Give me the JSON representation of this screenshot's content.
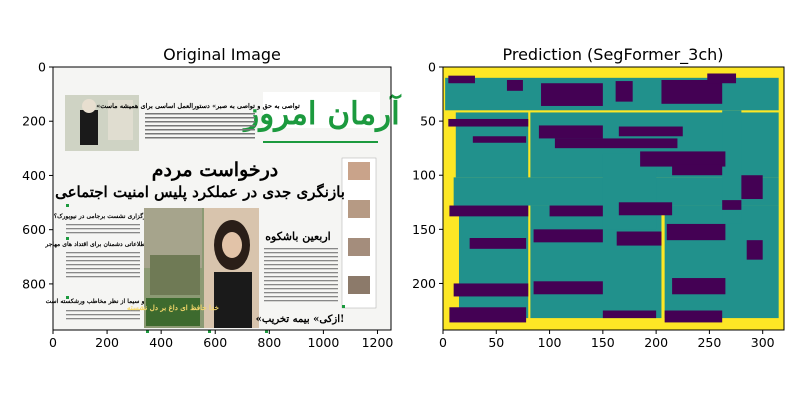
{
  "chart_data": [
    {
      "type": "image",
      "title": "Original Image",
      "xlim": [
        0,
        1250
      ],
      "ylim": [
        970,
        0
      ],
      "xticks": [
        0,
        200,
        400,
        600,
        800,
        1000,
        1200
      ],
      "yticks": [
        0,
        200,
        400,
        600,
        800
      ],
      "content": {
        "masthead": "آرمان امروز",
        "headline_1": "درخواست مردم",
        "headline_2": "بازنگری جدی در عملکرد پلیس امنیت اجتماعی",
        "kicker": "اربعین باشکوه",
        "photo_caption": "خدا حافظ ای داغ بر دل نشسته",
        "bottom_headline": "«ازکی» بیمه تخریب!",
        "left_item_1": "برگزاری نشست برجامی در نیویورک؟",
        "left_item_2": "نور اطلاعاتی دشمنان برای اقتداد های مهاجر",
        "left_item_3": "صدا و سیما از نظر مخاطب ورشکسته است",
        "top_teaser": "«تواصی به حق و تواصی به صبر» دستورالعمل اساسی برای همیشه ماست"
      }
    },
    {
      "type": "heatmap",
      "title": "Prediction (SegFormer_3ch)",
      "xlim": [
        0,
        320
      ],
      "ylim": [
        243,
        0
      ],
      "xticks": [
        0,
        50,
        100,
        150,
        200,
        250,
        300
      ],
      "yticks": [
        0,
        50,
        100,
        150,
        200
      ],
      "classes": [
        {
          "id": 0,
          "color": "#440154"
        },
        {
          "id": 1,
          "color": "#21918c"
        },
        {
          "id": 2,
          "color": "#fde725"
        }
      ],
      "background_class": 2,
      "teal_blocks": [
        [
          2,
          10,
          315,
          40
        ],
        [
          12,
          42,
          80,
          102
        ],
        [
          82,
          42,
          315,
          102
        ],
        [
          10,
          102,
          315,
          128
        ],
        [
          15,
          128,
          80,
          232
        ],
        [
          82,
          128,
          160,
          232
        ],
        [
          160,
          128,
          205,
          232
        ],
        [
          208,
          128,
          315,
          232
        ],
        [
          262,
          40,
          280,
          145
        ],
        [
          150,
          80,
          200,
          150
        ]
      ],
      "purple_blocks": [
        [
          5,
          8,
          30,
          15
        ],
        [
          60,
          12,
          75,
          22
        ],
        [
          92,
          15,
          150,
          36
        ],
        [
          162,
          13,
          178,
          32
        ],
        [
          205,
          12,
          262,
          34
        ],
        [
          248,
          6,
          275,
          15
        ],
        [
          5,
          48,
          80,
          55
        ],
        [
          90,
          54,
          150,
          66
        ],
        [
          165,
          55,
          225,
          64
        ],
        [
          105,
          66,
          220,
          75
        ],
        [
          185,
          78,
          265,
          92
        ],
        [
          215,
          90,
          262,
          100
        ],
        [
          28,
          64,
          78,
          70
        ],
        [
          6,
          128,
          80,
          138
        ],
        [
          100,
          128,
          150,
          138
        ],
        [
          165,
          125,
          215,
          137
        ],
        [
          262,
          123,
          280,
          132
        ],
        [
          25,
          158,
          78,
          168
        ],
        [
          85,
          150,
          150,
          162
        ],
        [
          163,
          152,
          205,
          165
        ],
        [
          210,
          145,
          265,
          160
        ],
        [
          10,
          200,
          80,
          212
        ],
        [
          85,
          198,
          150,
          210
        ],
        [
          6,
          222,
          78,
          236
        ],
        [
          150,
          225,
          200,
          232
        ],
        [
          215,
          195,
          265,
          210
        ],
        [
          208,
          225,
          262,
          236
        ],
        [
          280,
          100,
          300,
          122
        ],
        [
          285,
          160,
          300,
          178
        ]
      ]
    }
  ]
}
